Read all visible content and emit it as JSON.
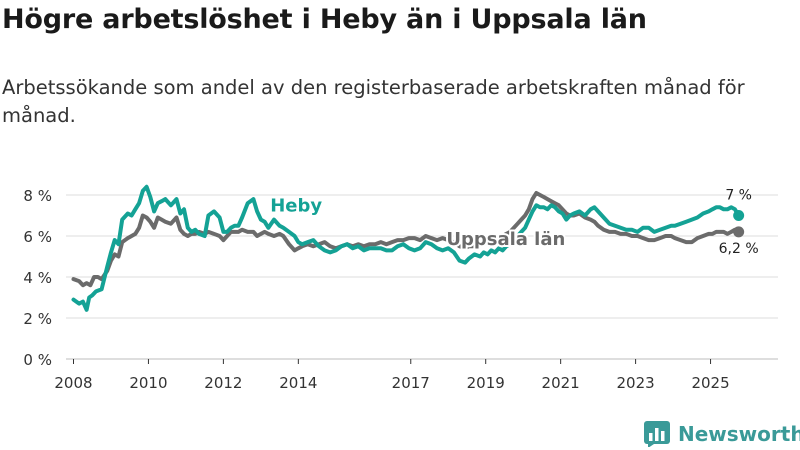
{
  "header": {
    "title": "Högre arbetslöshet i Heby än i Uppsala län",
    "subtitle": "Arbetssökande som andel av den registerbaserade arbetskraften månad för månad."
  },
  "brand": {
    "name": "Newsworthy",
    "color": "#3a9a98"
  },
  "chart_data": {
    "type": "line",
    "title": "Högre arbetslöshet i Heby än i Uppsala län",
    "xlabel": "",
    "ylabel": "",
    "xlim": [
      2007.8,
      2026.8
    ],
    "ylim": [
      0,
      8
    ],
    "y_ticks": [
      0,
      2,
      4,
      6,
      8
    ],
    "y_tick_labels": [
      "0 %",
      "2 %",
      "4 %",
      "6 %",
      "8 %"
    ],
    "x_ticks": [
      2008,
      2010,
      2012,
      2014,
      2017,
      2019,
      2021,
      2023,
      2025
    ],
    "x_tick_labels": [
      "2008",
      "2010",
      "2012",
      "2014",
      "2017",
      "2019",
      "2021",
      "2023",
      "2025"
    ],
    "grid": true,
    "legend": "inline labels",
    "series": [
      {
        "name": "Heby",
        "color": "#14a295",
        "end_label": "7 %",
        "x": [
          2008.0,
          2008.15,
          2008.25,
          2008.35,
          2008.42,
          2008.5,
          2008.6,
          2008.75,
          2008.9,
          2009.0,
          2009.1,
          2009.2,
          2009.3,
          2009.45,
          2009.55,
          2009.65,
          2009.75,
          2009.85,
          2009.95,
          2010.05,
          2010.15,
          2010.25,
          2010.35,
          2010.45,
          2010.6,
          2010.75,
          2010.85,
          2010.95,
          2011.05,
          2011.15,
          2011.25,
          2011.35,
          2011.5,
          2011.6,
          2011.75,
          2011.9,
          2012.0,
          2012.1,
          2012.2,
          2012.3,
          2012.4,
          2012.5,
          2012.65,
          2012.8,
          2012.9,
          2013.0,
          2013.1,
          2013.2,
          2013.35,
          2013.5,
          2013.6,
          2013.75,
          2013.9,
          2014.0,
          2014.1,
          2014.25,
          2014.4,
          2014.55,
          2014.7,
          2014.85,
          2015.0,
          2015.15,
          2015.3,
          2015.45,
          2015.6,
          2015.75,
          2015.9,
          2016.05,
          2016.2,
          2016.35,
          2016.5,
          2016.65,
          2016.8,
          2016.95,
          2017.1,
          2017.25,
          2017.4,
          2017.55,
          2017.7,
          2017.85,
          2018.0,
          2018.15,
          2018.3,
          2018.45,
          2018.55,
          2018.7,
          2018.85,
          2018.95,
          2019.05,
          2019.15,
          2019.25,
          2019.35,
          2019.45,
          2019.55,
          2019.65,
          2019.75,
          2019.85,
          2019.95,
          2020.05,
          2020.15,
          2020.25,
          2020.35,
          2020.45,
          2020.55,
          2020.65,
          2020.75,
          2020.85,
          2020.95,
          2021.05,
          2021.15,
          2021.25,
          2021.35,
          2021.5,
          2021.65,
          2021.8,
          2021.9,
          2022.0,
          2022.15,
          2022.3,
          2022.45,
          2022.6,
          2022.75,
          2022.9,
          2023.05,
          2023.2,
          2023.35,
          2023.5,
          2023.65,
          2023.8,
          2023.95,
          2024.05,
          2024.2,
          2024.35,
          2024.5,
          2024.65,
          2024.8,
          2024.95,
          2025.05,
          2025.15,
          2025.25,
          2025.35,
          2025.45,
          2025.55,
          2025.65,
          2025.75
        ],
        "values": [
          2.9,
          2.7,
          2.8,
          2.4,
          3.0,
          3.1,
          3.3,
          3.4,
          4.5,
          5.2,
          5.8,
          5.6,
          6.8,
          7.1,
          7.0,
          7.3,
          7.6,
          8.2,
          8.4,
          7.9,
          7.2,
          7.6,
          7.7,
          7.8,
          7.5,
          7.8,
          7.1,
          7.3,
          6.4,
          6.2,
          6.3,
          6.1,
          6.0,
          7.0,
          7.2,
          6.9,
          6.2,
          6.2,
          6.4,
          6.5,
          6.5,
          6.9,
          7.6,
          7.8,
          7.2,
          6.8,
          6.7,
          6.4,
          6.8,
          6.5,
          6.4,
          6.2,
          6.0,
          5.7,
          5.6,
          5.7,
          5.8,
          5.5,
          5.3,
          5.2,
          5.3,
          5.5,
          5.6,
          5.4,
          5.5,
          5.3,
          5.4,
          5.4,
          5.4,
          5.3,
          5.3,
          5.5,
          5.6,
          5.4,
          5.3,
          5.4,
          5.7,
          5.6,
          5.4,
          5.3,
          5.4,
          5.2,
          4.8,
          4.7,
          4.9,
          5.1,
          5.0,
          5.2,
          5.1,
          5.3,
          5.2,
          5.4,
          5.3,
          5.5,
          5.6,
          5.8,
          6.0,
          6.2,
          6.4,
          6.8,
          7.2,
          7.5,
          7.4,
          7.4,
          7.3,
          7.5,
          7.4,
          7.2,
          7.1,
          6.8,
          7.0,
          7.1,
          7.2,
          7.0,
          7.3,
          7.4,
          7.2,
          6.9,
          6.6,
          6.5,
          6.4,
          6.3,
          6.3,
          6.2,
          6.4,
          6.4,
          6.2,
          6.3,
          6.4,
          6.5,
          6.5,
          6.6,
          6.7,
          6.8,
          6.9,
          7.1,
          7.2,
          7.3,
          7.4,
          7.4,
          7.3,
          7.3,
          7.4,
          7.3,
          7.0
        ]
      },
      {
        "name": "Uppsala län",
        "color": "#6b6b6b",
        "end_label": "6,2 %",
        "x": [
          2008.0,
          2008.15,
          2008.25,
          2008.35,
          2008.45,
          2008.55,
          2008.65,
          2008.75,
          2008.9,
          2009.0,
          2009.1,
          2009.2,
          2009.3,
          2009.45,
          2009.55,
          2009.65,
          2009.75,
          2009.85,
          2009.95,
          2010.05,
          2010.15,
          2010.25,
          2010.35,
          2010.45,
          2010.6,
          2010.75,
          2010.85,
          2010.95,
          2011.05,
          2011.15,
          2011.25,
          2011.35,
          2011.5,
          2011.6,
          2011.75,
          2011.9,
          2012.0,
          2012.1,
          2012.2,
          2012.3,
          2012.4,
          2012.5,
          2012.65,
          2012.8,
          2012.9,
          2013.0,
          2013.1,
          2013.2,
          2013.35,
          2013.5,
          2013.6,
          2013.75,
          2013.9,
          2014.0,
          2014.1,
          2014.25,
          2014.4,
          2014.55,
          2014.7,
          2014.85,
          2015.0,
          2015.15,
          2015.3,
          2015.45,
          2015.6,
          2015.75,
          2015.9,
          2016.05,
          2016.2,
          2016.35,
          2016.5,
          2016.65,
          2016.8,
          2016.95,
          2017.1,
          2017.25,
          2017.4,
          2017.55,
          2017.7,
          2017.85,
          2018.0,
          2018.15,
          2018.3,
          2018.45,
          2018.55,
          2018.7,
          2018.85,
          2018.95,
          2019.05,
          2019.15,
          2019.25,
          2019.35,
          2019.45,
          2019.55,
          2019.65,
          2019.75,
          2019.85,
          2019.95,
          2020.05,
          2020.15,
          2020.25,
          2020.35,
          2020.45,
          2020.55,
          2020.65,
          2020.75,
          2020.85,
          2020.95,
          2021.05,
          2021.15,
          2021.25,
          2021.35,
          2021.5,
          2021.65,
          2021.8,
          2021.9,
          2022.0,
          2022.15,
          2022.3,
          2022.45,
          2022.6,
          2022.75,
          2022.9,
          2023.05,
          2023.2,
          2023.35,
          2023.5,
          2023.65,
          2023.8,
          2023.95,
          2024.05,
          2024.2,
          2024.35,
          2024.5,
          2024.65,
          2024.8,
          2024.95,
          2025.05,
          2025.15,
          2025.25,
          2025.35,
          2025.45,
          2025.55,
          2025.65,
          2025.75
        ],
        "values": [
          3.9,
          3.8,
          3.6,
          3.7,
          3.6,
          4.0,
          4.0,
          3.9,
          4.3,
          4.8,
          5.1,
          5.0,
          5.7,
          5.9,
          6.0,
          6.1,
          6.4,
          7.0,
          6.9,
          6.7,
          6.4,
          6.9,
          6.8,
          6.7,
          6.6,
          6.9,
          6.3,
          6.1,
          6.0,
          6.1,
          6.1,
          6.2,
          6.1,
          6.2,
          6.1,
          6.0,
          5.8,
          6.0,
          6.2,
          6.2,
          6.2,
          6.3,
          6.2,
          6.2,
          6.0,
          6.1,
          6.2,
          6.1,
          6.0,
          6.1,
          6.0,
          5.6,
          5.3,
          5.4,
          5.5,
          5.6,
          5.5,
          5.6,
          5.7,
          5.5,
          5.4,
          5.5,
          5.6,
          5.5,
          5.6,
          5.5,
          5.6,
          5.6,
          5.7,
          5.6,
          5.7,
          5.8,
          5.8,
          5.9,
          5.9,
          5.8,
          6.0,
          5.9,
          5.8,
          5.9,
          5.8,
          5.7,
          5.5,
          5.4,
          5.5,
          5.5,
          5.6,
          5.7,
          5.6,
          5.8,
          5.7,
          5.9,
          6.0,
          6.1,
          6.2,
          6.4,
          6.6,
          6.8,
          7.0,
          7.3,
          7.8,
          8.1,
          8.0,
          7.9,
          7.8,
          7.7,
          7.6,
          7.5,
          7.3,
          7.1,
          7.0,
          7.0,
          7.1,
          6.9,
          6.8,
          6.7,
          6.5,
          6.3,
          6.2,
          6.2,
          6.1,
          6.1,
          6.0,
          6.0,
          5.9,
          5.8,
          5.8,
          5.9,
          6.0,
          6.0,
          5.9,
          5.8,
          5.7,
          5.7,
          5.9,
          6.0,
          6.1,
          6.1,
          6.2,
          6.2,
          6.2,
          6.1,
          6.2,
          6.3,
          6.2
        ]
      }
    ]
  }
}
